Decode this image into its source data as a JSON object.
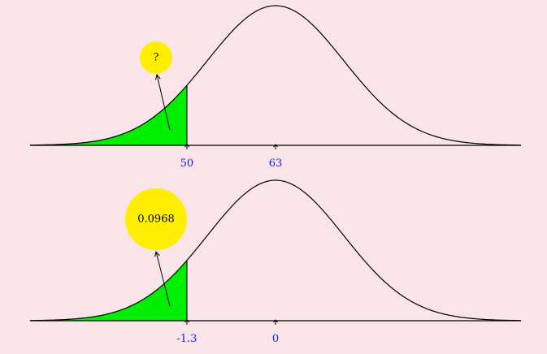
{
  "panels": [
    {
      "ticks": [
        {
          "value": -1.3,
          "label": "50"
        },
        {
          "value": 0,
          "label": "63"
        }
      ],
      "shaded_upper": -1.3,
      "callout": "?"
    },
    {
      "ticks": [
        {
          "value": -1.3,
          "label": "-1.3"
        },
        {
          "value": 0,
          "label": "0"
        }
      ],
      "shaded_upper": -1.3,
      "callout": "0.0968"
    }
  ],
  "colors": {
    "background": "#f9e5e7",
    "shade": "#00ee00",
    "bubble": "#ffee00",
    "tick_label": "#1a1aff",
    "curve": "#000000"
  },
  "icons": [
    "arrow-icon",
    "tick-arrow-icon"
  ]
}
